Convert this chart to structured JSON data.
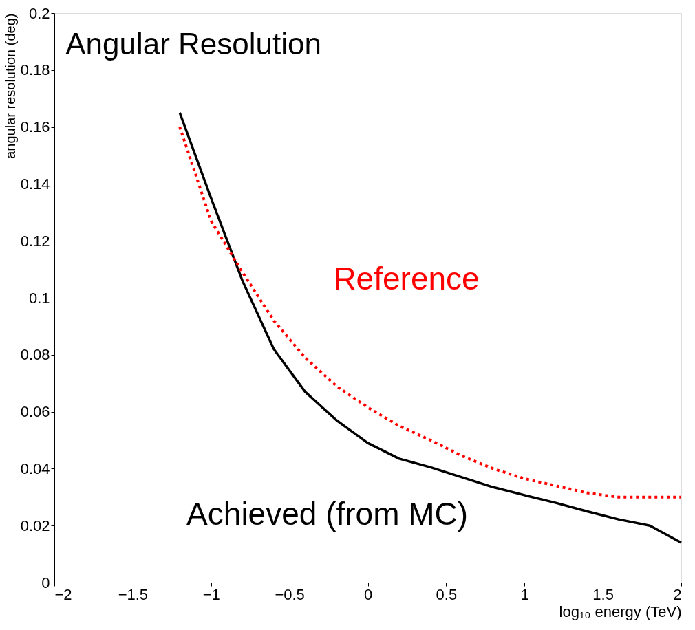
{
  "chart_data": {
    "type": "line",
    "title": "Angular Resolution",
    "xlabel": "log₁₀ energy (TeV)",
    "ylabel": "angular resolution (deg)",
    "xlim": [
      -2,
      2
    ],
    "xticks": [
      -2,
      -1.5,
      -1,
      -0.5,
      0,
      0.5,
      1,
      1.5,
      2
    ],
    "ylim": [
      0,
      0.2
    ],
    "yticks": [
      0,
      0.02,
      0.04,
      0.06,
      0.08,
      0.1,
      0.12,
      0.14,
      0.16,
      0.18,
      0.2
    ],
    "grid": false,
    "marker": "none",
    "series": [
      {
        "name": "Achieved (from MC)",
        "color": "#000000",
        "line_style": "solid",
        "x": [
          -1.2,
          -1.0,
          -0.8,
          -0.6,
          -0.4,
          -0.2,
          0,
          0.2,
          0.4,
          0.6,
          0.8,
          1.0,
          1.2,
          1.4,
          1.6,
          1.8,
          2.0
        ],
        "values": [
          0.165,
          0.135,
          0.106,
          0.082,
          0.067,
          0.057,
          0.049,
          0.0435,
          0.0405,
          0.037,
          0.0335,
          0.0307,
          0.028,
          0.025,
          0.0222,
          0.02,
          0.014
        ]
      },
      {
        "name": "Reference",
        "color": "#ff0000",
        "line_style": "dotted",
        "x": [
          -1.2,
          -1.0,
          -0.8,
          -0.6,
          -0.4,
          -0.2,
          0,
          0.2,
          0.4,
          0.6,
          0.8,
          1.0,
          1.2,
          1.4,
          1.6,
          1.8,
          2.0
        ],
        "values": [
          0.16,
          0.127,
          0.109,
          0.092,
          0.079,
          0.069,
          0.0615,
          0.055,
          0.05,
          0.0445,
          0.04,
          0.0365,
          0.034,
          0.0315,
          0.03,
          0.03,
          0.03
        ]
      }
    ]
  }
}
